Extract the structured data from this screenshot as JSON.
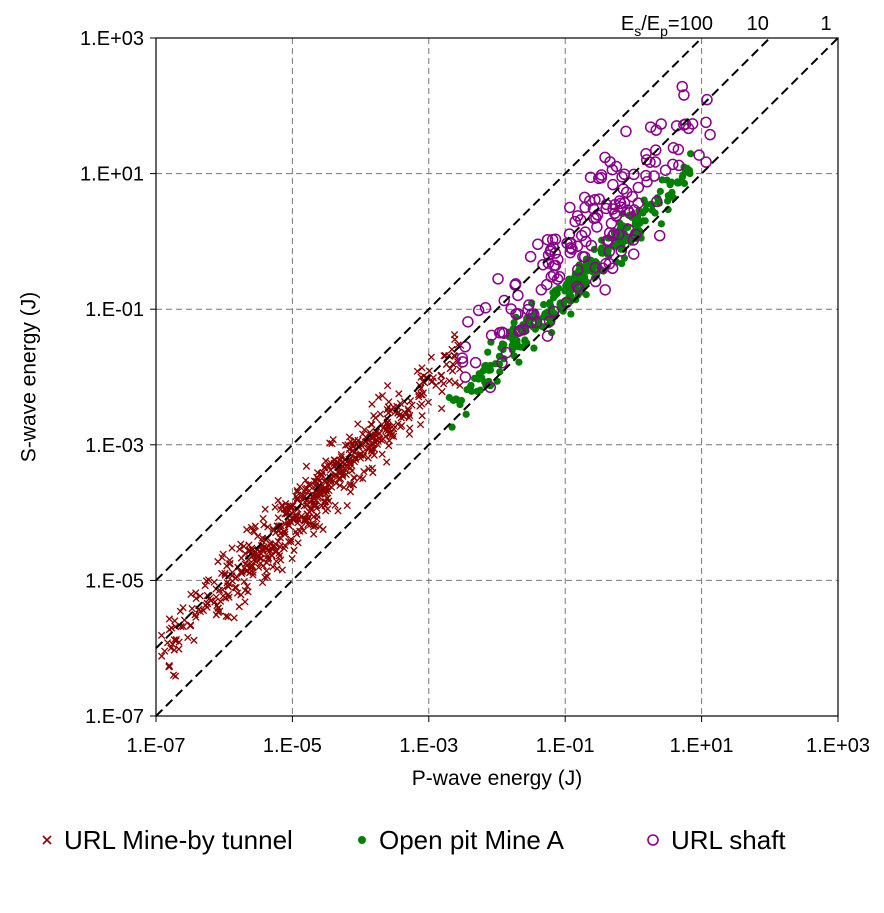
{
  "chart_data": {
    "type": "scatter",
    "xlabel": "P-wave energy (J)",
    "ylabel": "S-wave energy (J)",
    "x_scale": "log",
    "y_scale": "log",
    "xlim": [
      1e-07,
      1000
    ],
    "ylim": [
      1e-07,
      1000
    ],
    "x_ticks": [
      "1.E-07",
      "1.E-05",
      "1.E-03",
      "1.E-01",
      "1.E+01",
      "1.E+03"
    ],
    "y_ticks": [
      "1.E-07",
      "1.E-05",
      "1.E-03",
      "1.E-01",
      "1.E+01",
      "1.E+03"
    ],
    "grid": true,
    "reference_lines": {
      "label_prefix": "E",
      "label_sub1": "s",
      "label_sub2": "p",
      "label_eq": "=",
      "ratios": [
        {
          "ratio": 100,
          "label": "100"
        },
        {
          "ratio": 10,
          "label": "10"
        },
        {
          "ratio": 1,
          "label": "1"
        }
      ],
      "style": "dashed"
    },
    "legend_position": "bottom",
    "series": [
      {
        "name": "URL Mine-by tunnel",
        "marker": "x",
        "color": "#8b0000",
        "x_range": [
          1.2e-07,
          0.003
        ],
        "ratio_range": [
          2,
          30
        ],
        "count": 600
      },
      {
        "name": "Open pit Mine A",
        "marker": "filled-circle",
        "color": "#008000",
        "x_range": [
          0.002,
          8
        ],
        "ratio_range": [
          0.7,
          4
        ],
        "count": 280
      },
      {
        "name": "URL shaft",
        "marker": "open-circle",
        "color": "#8b008b",
        "x_range": [
          0.003,
          15
        ],
        "ratio_range": [
          0.5,
          60
        ],
        "count": 170
      }
    ]
  }
}
